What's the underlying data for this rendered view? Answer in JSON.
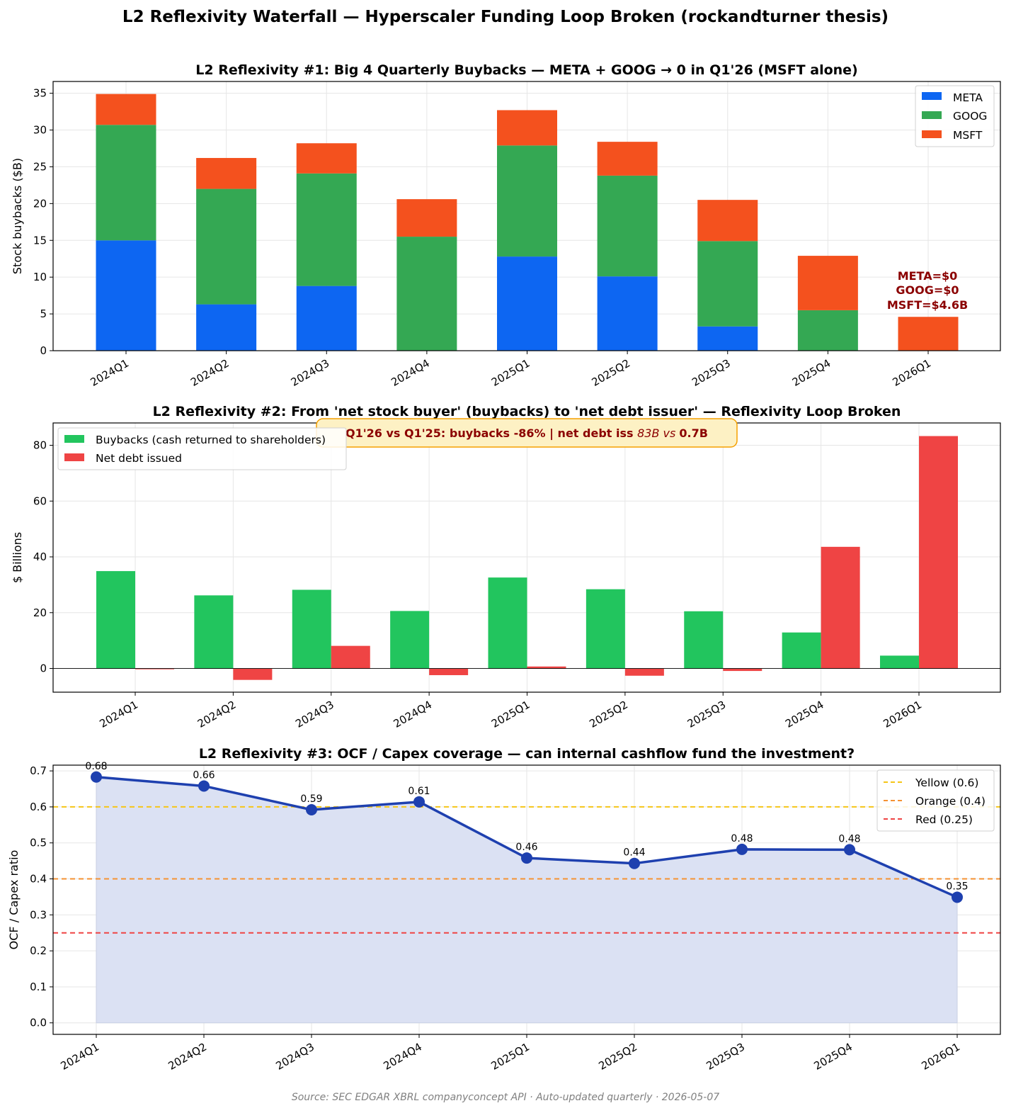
{
  "title": "L2 Reflexivity Waterfall — Hyperscaler Funding Loop Broken (rockandturner thesis)",
  "footer": "Source: SEC EDGAR XBRL companyconcept API · Auto-updated quarterly · 2026-05-07",
  "colors": {
    "meta": "#0d66f2",
    "goog": "#34a853",
    "msft": "#f4511e",
    "buybacks": "#22c55e",
    "net_debt": "#ef4444",
    "ocf_line": "#1e40af",
    "ocf_fill": "#dbe1f3",
    "yellow": "#f5c518",
    "orange": "#f59233",
    "red": "#ef4444",
    "annot_text": "#8b0000",
    "annot_bg": "#fdf1c4",
    "annot_border": "#f5a000"
  },
  "chart_data": [
    {
      "type": "bar",
      "stacked": true,
      "title": "L2 Reflexivity #1: Big 4 Quarterly Buybacks — META + GOOG → 0 in Q1'26 (MSFT alone)",
      "xlabel": "",
      "ylabel": "Stock buybacks ($B)",
      "ylim": [
        0,
        36.6
      ],
      "yticks": [
        0,
        5,
        10,
        15,
        20,
        25,
        30,
        35
      ],
      "categories": [
        "2024Q1",
        "2024Q2",
        "2024Q3",
        "2024Q4",
        "2025Q1",
        "2025Q2",
        "2025Q3",
        "2025Q4",
        "2026Q1"
      ],
      "series": [
        {
          "name": "META",
          "values": [
            15.0,
            6.3,
            8.8,
            0,
            12.8,
            10.1,
            3.3,
            0,
            0
          ]
        },
        {
          "name": "GOOG",
          "values": [
            15.7,
            15.7,
            15.3,
            15.5,
            15.1,
            13.7,
            11.6,
            5.5,
            0
          ]
        },
        {
          "name": "MSFT",
          "values": [
            4.2,
            4.2,
            4.1,
            5.1,
            4.8,
            4.6,
            5.6,
            7.4,
            4.6
          ]
        }
      ],
      "legend": "top-right",
      "grid": true,
      "annotation": [
        "META=$0",
        "GOOG=$0",
        "MSFT=$4.6B"
      ]
    },
    {
      "type": "bar",
      "title": "L2 Reflexivity #2: From 'net stock buyer' (buybacks) to 'net debt issuer' — Reflexivity Loop Broken",
      "xlabel": "",
      "ylabel": "$ Billions",
      "ylim": [
        -8.5,
        88
      ],
      "yticks": [
        0,
        20,
        40,
        60,
        80
      ],
      "categories": [
        "2024Q1",
        "2024Q2",
        "2024Q3",
        "2024Q4",
        "2025Q1",
        "2025Q2",
        "2025Q3",
        "2025Q4",
        "2026Q1"
      ],
      "series": [
        {
          "name": "Buybacks (cash returned to shareholders)",
          "values": [
            34.9,
            26.2,
            28.2,
            20.6,
            32.6,
            28.4,
            20.5,
            12.9,
            4.6
          ]
        },
        {
          "name": "Net debt issued",
          "values": [
            -0.3,
            -4.1,
            8.1,
            -2.4,
            0.7,
            -2.6,
            -0.9,
            43.6,
            83.3
          ]
        }
      ],
      "legend": "top-left",
      "grid": true,
      "annotation_parts": [
        "Q1'26 vs Q1'25: buybacks -86% | net debt iss ",
        "83B vs ",
        "0.7B"
      ]
    },
    {
      "type": "line",
      "title": "L2 Reflexivity #3: OCF / Capex coverage — can internal cashflow fund the investment?",
      "xlabel": "",
      "ylabel": "OCF / Capex ratio",
      "ylim": [
        -0.032,
        0.716
      ],
      "yticks": [
        "0.0",
        "0.1",
        "0.2",
        "0.3",
        "0.4",
        "0.5",
        "0.6",
        "0.7"
      ],
      "categories": [
        "2024Q1",
        "2024Q2",
        "2024Q3",
        "2024Q4",
        "2025Q1",
        "2025Q2",
        "2025Q3",
        "2025Q4",
        "2026Q1"
      ],
      "values": [
        0.683,
        0.658,
        0.592,
        0.614,
        0.458,
        0.443,
        0.482,
        0.481,
        0.349
      ],
      "value_labels": [
        "0.68",
        "0.66",
        "0.59",
        "0.61",
        "0.46",
        "0.44",
        "0.48",
        "0.48",
        "0.35"
      ],
      "thresholds": [
        {
          "name": "Yellow (0.6)",
          "value": 0.6
        },
        {
          "name": "Orange (0.4)",
          "value": 0.4
        },
        {
          "name": "Red (0.25)",
          "value": 0.25
        }
      ],
      "legend": "top-right",
      "grid": true
    }
  ]
}
